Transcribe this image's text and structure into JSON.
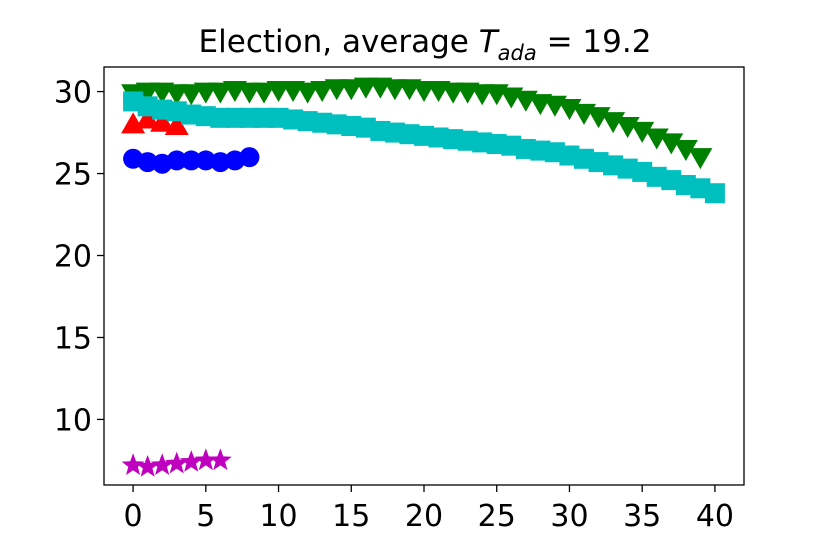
{
  "chart_data": {
    "type": "scatter",
    "title": {
      "prefix": "Election, average ",
      "symbol": "T",
      "subscript": "ada",
      "suffix": " = 19.2"
    },
    "xlabel": "",
    "ylabel": "",
    "xlim": [
      -2,
      42
    ],
    "ylim": [
      6,
      31.5
    ],
    "xticks": [
      0,
      5,
      10,
      15,
      20,
      25,
      30,
      35,
      40
    ],
    "yticks": [
      10,
      15,
      20,
      25,
      30
    ],
    "grid": false,
    "legend": "none",
    "series": [
      {
        "marker": "triangle-up",
        "color": "#ff0000",
        "x": [
          0,
          1,
          2,
          3
        ],
        "y": [
          28.0,
          28.3,
          28.1,
          27.9
        ]
      },
      {
        "marker": "circle",
        "color": "#0000ff",
        "x": [
          0,
          1,
          2,
          3,
          4,
          5,
          6,
          7,
          8
        ],
        "y": [
          25.9,
          25.7,
          25.6,
          25.8,
          25.8,
          25.8,
          25.7,
          25.8,
          26.0
        ]
      },
      {
        "marker": "star",
        "color": "#bf00bf",
        "x": [
          0,
          1,
          2,
          3,
          4,
          5,
          6
        ],
        "y": [
          7.2,
          7.1,
          7.2,
          7.3,
          7.4,
          7.5,
          7.5
        ]
      },
      {
        "marker": "triangle-down",
        "color": "#008000",
        "x": [
          0,
          1,
          2,
          3,
          4,
          5,
          6,
          7,
          8,
          9,
          10,
          11,
          12,
          13,
          14,
          15,
          16,
          17,
          18,
          19,
          20,
          21,
          22,
          23,
          24,
          25,
          26,
          27,
          28,
          29,
          30,
          31,
          32,
          33,
          34,
          35,
          36,
          37,
          38,
          39
        ],
        "y": [
          29.9,
          30.0,
          30.0,
          29.9,
          29.9,
          30.0,
          30.0,
          30.1,
          30.0,
          30.0,
          30.1,
          30.1,
          30.0,
          30.1,
          30.2,
          30.2,
          30.3,
          30.3,
          30.2,
          30.2,
          30.1,
          30.1,
          30.0,
          30.0,
          29.9,
          29.9,
          29.7,
          29.5,
          29.3,
          29.2,
          29.0,
          28.7,
          28.5,
          28.2,
          27.9,
          27.6,
          27.2,
          26.9,
          26.5,
          26.0
        ]
      },
      {
        "marker": "square",
        "color": "#00bfbf",
        "x": [
          0,
          1,
          2,
          3,
          4,
          5,
          6,
          7,
          8,
          9,
          10,
          11,
          12,
          13,
          14,
          15,
          16,
          17,
          18,
          19,
          20,
          21,
          22,
          23,
          24,
          25,
          26,
          27,
          28,
          29,
          30,
          31,
          32,
          33,
          34,
          35,
          36,
          37,
          38,
          39,
          40
        ],
        "y": [
          29.4,
          29.1,
          28.9,
          28.8,
          28.6,
          28.5,
          28.4,
          28.4,
          28.4,
          28.4,
          28.4,
          28.3,
          28.2,
          28.1,
          28.0,
          27.9,
          27.8,
          27.6,
          27.5,
          27.4,
          27.3,
          27.2,
          27.1,
          27.0,
          26.9,
          26.8,
          26.7,
          26.5,
          26.4,
          26.3,
          26.1,
          25.9,
          25.7,
          25.5,
          25.3,
          25.1,
          24.8,
          24.6,
          24.3,
          24.1,
          23.8
        ]
      }
    ]
  }
}
